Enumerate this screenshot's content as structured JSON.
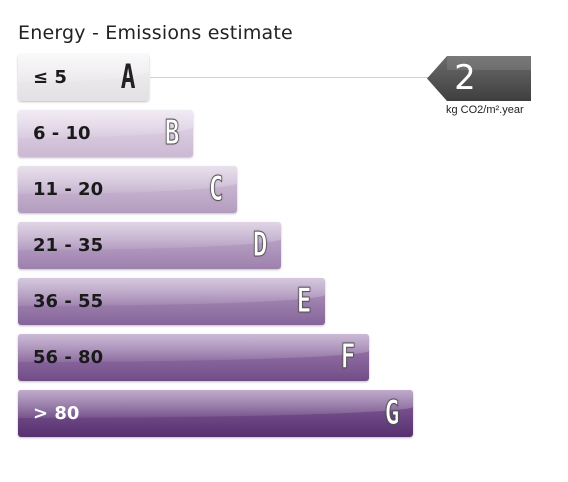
{
  "title": "Energy - Emissions estimate",
  "bands": [
    {
      "range": "≤ 5",
      "letter": "A",
      "color_top": "#f4f2f5",
      "color_bottom": "#e3e0e4",
      "text_color": "#1a1a1a"
    },
    {
      "range": "6 - 10",
      "letter": "B",
      "color_top": "#e6dbeb",
      "color_bottom": "#cbb8d3",
      "text_color": "#1a1a1a"
    },
    {
      "range": "11 - 20",
      "letter": "C",
      "color_top": "#d6c7dd",
      "color_bottom": "#b39cbf",
      "text_color": "#1a1a1a"
    },
    {
      "range": "21 - 35",
      "letter": "D",
      "color_top": "#c6b2d1",
      "color_bottom": "#9d81ad",
      "text_color": "#1a1a1a"
    },
    {
      "range": "36 - 55",
      "letter": "E",
      "color_top": "#b49bc2",
      "color_bottom": "#86659a",
      "text_color": "#1a1a1a"
    },
    {
      "range": "56 - 80",
      "letter": "F",
      "color_top": "#a182b3",
      "color_bottom": "#714d88",
      "text_color": "#1a1a1a"
    },
    {
      "range": "> 80",
      "letter": "G",
      "color_top": "#8a66a0",
      "color_bottom": "#56306f",
      "text_color": "#ffffff"
    }
  ],
  "indicator": {
    "value": "2",
    "unit": "kg CO2/m².year",
    "band": "A",
    "color": "#555555"
  }
}
